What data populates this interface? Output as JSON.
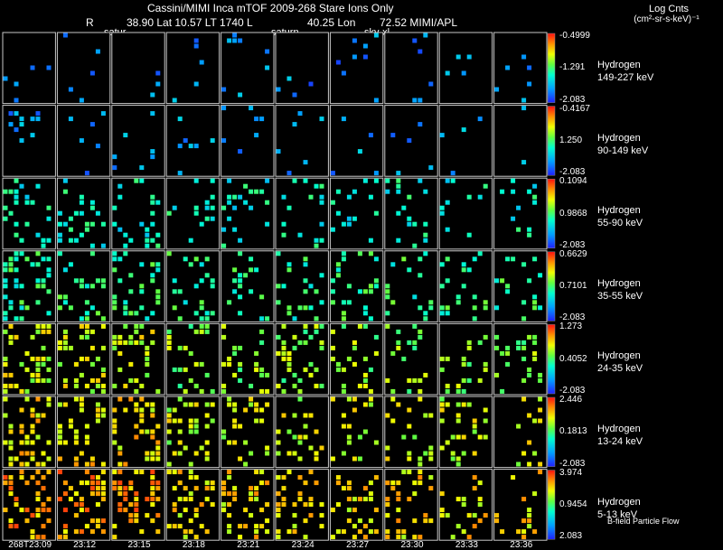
{
  "header": {
    "title": "Cassini/MIMI Inca mTOF  2009-268   Stare   Ions Only",
    "info_r": "R",
    "info_line": "38.90 Lat 10.57 LT 1740 L",
    "info_lon": "40.25 Lon",
    "info_right": "72.52  MIMI/APL",
    "units_line1": "Log Cnts",
    "units_line2": "(cm²-sr-s-keV)⁻¹"
  },
  "frame_labels": [
    "satur",
    "saturn",
    "sky-xl"
  ],
  "footer_note": "B-field Particle Flow",
  "chart_data": {
    "type": "heatmap",
    "title": "Cassini/MIMI Inca mTOF  2009-268   Stare   Ions Only",
    "x_tick_labels": [
      "268T23:09",
      "23:12",
      "23:15",
      "23:18",
      "23:21",
      "23:24",
      "23:27",
      "23:30",
      "23:33",
      "23:36"
    ],
    "rows": [
      {
        "species": "Hydrogen",
        "energy": "149-227 keV",
        "cb_max": "-0.4999",
        "cb_mid": "-1.291",
        "cb_min": "-2.083",
        "activity": 0.08
      },
      {
        "species": "Hydrogen",
        "energy": "90-149 keV",
        "cb_max": "-0.4167",
        "cb_mid": "1.250",
        "cb_min": "-2.083",
        "activity": 0.12
      },
      {
        "species": "Hydrogen",
        "energy": "55-90 keV",
        "cb_max": "0.1094",
        "cb_mid": "0.9868",
        "cb_min": "-2.083",
        "activity": 0.45
      },
      {
        "species": "Hydrogen",
        "energy": "35-55 keV",
        "cb_max": "0.6629",
        "cb_mid": "0.7101",
        "cb_min": "-2.083",
        "activity": 0.5
      },
      {
        "species": "Hydrogen",
        "energy": "24-35 keV",
        "cb_max": "1.273",
        "cb_mid": "0.4052",
        "cb_min": "-2.083",
        "activity": 0.65
      },
      {
        "species": "Hydrogen",
        "energy": "13-24 keV",
        "cb_max": "2.446",
        "cb_mid": "0.1813",
        "cb_min": "-2.083",
        "activity": 0.72
      },
      {
        "species": "Hydrogen",
        "energy": "5-13 keV",
        "cb_max": "3.974",
        "cb_mid": "0.9454",
        "cb_min": "2.083",
        "activity": 0.8
      }
    ],
    "colorbar_scale": "rainbow (blue low → red high)"
  }
}
